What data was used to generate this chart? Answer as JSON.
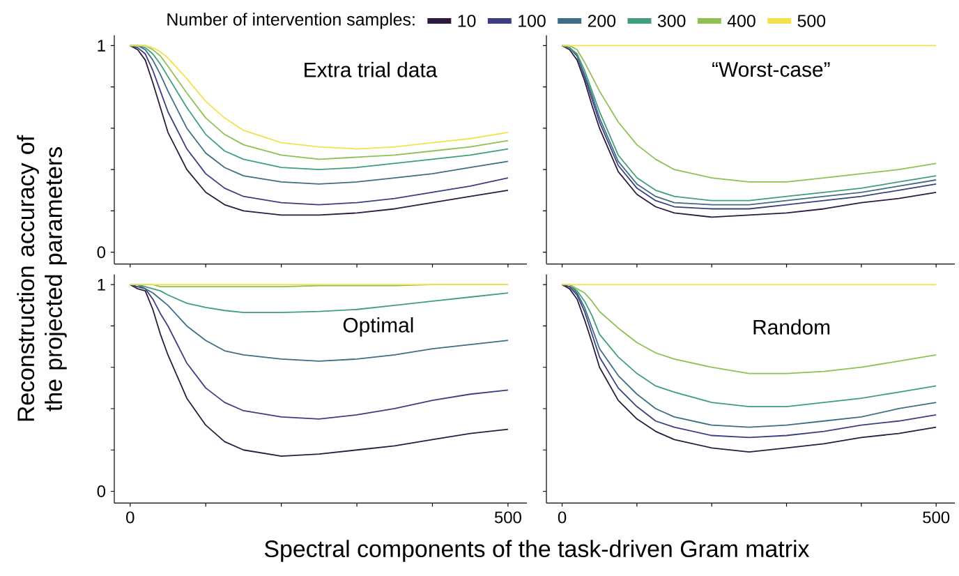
{
  "chart_data": [
    {
      "type": "line",
      "title": "Extra trial data",
      "legend": "top",
      "legend_title": "Number of intervention samples:",
      "ylabel": "Reconstruction accuracy of the projected parameters",
      "tick_labels": "y",
      "xlim": [
        -21,
        525
      ],
      "ylim": [
        -0.057,
        1.05
      ],
      "xticks": [
        0,
        {
          "value": 100,
          "label": null
        },
        {
          "value": 200,
          "label": null
        },
        {
          "value": 300,
          "label": null
        },
        {
          "value": 400,
          "label": null
        },
        500
      ],
      "yticks": [
        0,
        {
          "value": 0.2,
          "label": null
        },
        {
          "value": 0.4,
          "label": null
        },
        {
          "value": 0.6,
          "label": null
        },
        {
          "value": 0.8,
          "label": null
        },
        1
      ],
      "x": [
        0,
        10,
        20,
        30,
        40,
        50,
        75,
        100,
        125,
        150,
        200,
        250,
        300,
        350,
        400,
        450,
        500
      ],
      "series": [
        {
          "name": "10",
          "color": "#2d1a3d",
          "values": [
            1,
            0.98,
            0.93,
            0.82,
            0.7,
            0.58,
            0.4,
            0.29,
            0.23,
            0.2,
            0.18,
            0.18,
            0.19,
            0.21,
            0.24,
            0.27,
            0.3
          ]
        },
        {
          "name": "100",
          "color": "#3b3f80",
          "values": [
            1,
            0.99,
            0.96,
            0.88,
            0.78,
            0.68,
            0.5,
            0.38,
            0.31,
            0.27,
            0.24,
            0.23,
            0.24,
            0.26,
            0.29,
            0.32,
            0.36
          ]
        },
        {
          "name": "200",
          "color": "#3e6d84",
          "values": [
            1,
            1,
            0.98,
            0.93,
            0.86,
            0.78,
            0.6,
            0.48,
            0.41,
            0.37,
            0.34,
            0.33,
            0.34,
            0.36,
            0.38,
            0.41,
            0.44
          ]
        },
        {
          "name": "300",
          "color": "#3f9f7a",
          "values": [
            1,
            1,
            0.99,
            0.96,
            0.91,
            0.85,
            0.7,
            0.57,
            0.49,
            0.45,
            0.41,
            0.4,
            0.41,
            0.43,
            0.45,
            0.47,
            0.5
          ]
        },
        {
          "name": "400",
          "color": "#8dc153",
          "values": [
            1,
            1,
            1,
            0.98,
            0.95,
            0.9,
            0.77,
            0.65,
            0.57,
            0.52,
            0.47,
            0.45,
            0.46,
            0.47,
            0.49,
            0.51,
            0.54
          ]
        },
        {
          "name": "500",
          "color": "#f2e24c",
          "values": [
            1,
            1,
            1,
            0.99,
            0.97,
            0.94,
            0.84,
            0.73,
            0.65,
            0.59,
            0.53,
            0.51,
            0.5,
            0.51,
            0.53,
            0.55,
            0.58
          ]
        }
      ]
    },
    {
      "type": "line",
      "title": "“Worst-case”",
      "tick_labels": false,
      "xlim": [
        -21,
        525
      ],
      "ylim": [
        -0.057,
        1.05
      ],
      "xticks": [
        0,
        {
          "value": 100,
          "label": null
        },
        {
          "value": 200,
          "label": null
        },
        {
          "value": 300,
          "label": null
        },
        {
          "value": 400,
          "label": null
        },
        500
      ],
      "yticks": [
        0,
        {
          "value": 0.2,
          "label": null
        },
        {
          "value": 0.4,
          "label": null
        },
        {
          "value": 0.6,
          "label": null
        },
        {
          "value": 0.8,
          "label": null
        },
        1
      ],
      "x": [
        0,
        10,
        20,
        30,
        40,
        50,
        75,
        100,
        125,
        150,
        200,
        250,
        300,
        350,
        400,
        450,
        500
      ],
      "series": [
        {
          "color": "#2d1a3d",
          "values": [
            1,
            0.98,
            0.93,
            0.83,
            0.71,
            0.6,
            0.39,
            0.28,
            0.22,
            0.19,
            0.17,
            0.18,
            0.19,
            0.21,
            0.24,
            0.26,
            0.29
          ]
        },
        {
          "color": "#3b3f80",
          "values": [
            1,
            0.99,
            0.95,
            0.85,
            0.74,
            0.63,
            0.42,
            0.31,
            0.25,
            0.22,
            0.21,
            0.21,
            0.23,
            0.25,
            0.27,
            0.3,
            0.33
          ]
        },
        {
          "color": "#3e6d84",
          "values": [
            1,
            0.99,
            0.95,
            0.86,
            0.76,
            0.65,
            0.44,
            0.33,
            0.27,
            0.24,
            0.23,
            0.23,
            0.25,
            0.27,
            0.29,
            0.32,
            0.35
          ]
        },
        {
          "color": "#3f9f7a",
          "values": [
            1,
            0.99,
            0.96,
            0.88,
            0.78,
            0.68,
            0.47,
            0.36,
            0.3,
            0.27,
            0.25,
            0.25,
            0.27,
            0.29,
            0.31,
            0.34,
            0.37
          ]
        },
        {
          "color": "#8dc153",
          "values": [
            1,
            1,
            0.98,
            0.92,
            0.85,
            0.78,
            0.63,
            0.52,
            0.45,
            0.4,
            0.36,
            0.34,
            0.34,
            0.36,
            0.38,
            0.4,
            0.43
          ]
        },
        {
          "color": "#f2e24c",
          "values": [
            1,
            1,
            1,
            1,
            1,
            1,
            1,
            1,
            1,
            1,
            1,
            1,
            1,
            1,
            1,
            1,
            1
          ]
        }
      ]
    },
    {
      "type": "line",
      "title": "Optimal",
      "xlabel": "Spectral components of the task-driven Gram matrix",
      "xlim": [
        -21,
        525
      ],
      "ylim": [
        -0.057,
        1.05
      ],
      "xticks": [
        0,
        {
          "value": 100,
          "label": null
        },
        {
          "value": 200,
          "label": null
        },
        {
          "value": 300,
          "label": null
        },
        {
          "value": 400,
          "label": null
        },
        500
      ],
      "yticks": [
        0,
        {
          "value": 0.2,
          "label": null
        },
        {
          "value": 0.4,
          "label": null
        },
        {
          "value": 0.6,
          "label": null
        },
        {
          "value": 0.8,
          "label": null
        },
        1
      ],
      "x": [
        0,
        10,
        20,
        30,
        40,
        50,
        75,
        100,
        125,
        150,
        200,
        250,
        300,
        350,
        400,
        450,
        500
      ],
      "series": [
        {
          "color": "#2d1a3d",
          "values": [
            1,
            0.98,
            0.97,
            0.88,
            0.76,
            0.66,
            0.45,
            0.32,
            0.24,
            0.2,
            0.17,
            0.18,
            0.2,
            0.22,
            0.25,
            0.28,
            0.3
          ]
        },
        {
          "color": "#3b3f80",
          "values": [
            1,
            0.99,
            0.98,
            0.93,
            0.86,
            0.8,
            0.62,
            0.5,
            0.43,
            0.39,
            0.36,
            0.35,
            0.37,
            0.4,
            0.44,
            0.47,
            0.49
          ]
        },
        {
          "color": "#3e6d84",
          "values": [
            1,
            1,
            0.98,
            0.96,
            0.93,
            0.9,
            0.8,
            0.73,
            0.68,
            0.66,
            0.64,
            0.63,
            0.64,
            0.66,
            0.69,
            0.71,
            0.73
          ]
        },
        {
          "color": "#3f9f7a",
          "values": [
            1,
            1,
            0.99,
            0.98,
            0.97,
            0.95,
            0.91,
            0.89,
            0.875,
            0.865,
            0.865,
            0.87,
            0.88,
            0.9,
            0.92,
            0.94,
            0.96
          ]
        },
        {
          "color": "#8dc153",
          "values": [
            1,
            1,
            1,
            1,
            0.99,
            0.99,
            0.99,
            0.99,
            0.99,
            0.99,
            0.99,
            0.995,
            0.995,
            0.995,
            1,
            1,
            1
          ]
        },
        {
          "color": "#f2e24c",
          "values": [
            1,
            1,
            1,
            1,
            1,
            1,
            1,
            1,
            1,
            1,
            1,
            1,
            1,
            1,
            1,
            1,
            1
          ]
        }
      ]
    },
    {
      "type": "line",
      "title": "Random",
      "tick_labels": "x",
      "xlim": [
        -21,
        525
      ],
      "ylim": [
        -0.057,
        1.05
      ],
      "xticks": [
        0,
        {
          "value": 100,
          "label": null
        },
        {
          "value": 200,
          "label": null
        },
        {
          "value": 300,
          "label": null
        },
        {
          "value": 400,
          "label": null
        },
        500
      ],
      "yticks": [
        0,
        {
          "value": 0.2,
          "label": null
        },
        {
          "value": 0.4,
          "label": null
        },
        {
          "value": 0.6,
          "label": null
        },
        {
          "value": 0.8,
          "label": null
        },
        1
      ],
      "x": [
        0,
        10,
        20,
        30,
        40,
        50,
        75,
        100,
        125,
        150,
        200,
        250,
        300,
        350,
        400,
        450,
        500
      ],
      "series": [
        {
          "color": "#2d1a3d",
          "values": [
            1,
            0.98,
            0.93,
            0.83,
            0.72,
            0.6,
            0.44,
            0.35,
            0.29,
            0.25,
            0.21,
            0.19,
            0.21,
            0.23,
            0.26,
            0.28,
            0.31
          ]
        },
        {
          "color": "#3b3f80",
          "values": [
            1,
            0.99,
            0.95,
            0.87,
            0.76,
            0.65,
            0.5,
            0.41,
            0.34,
            0.31,
            0.27,
            0.26,
            0.27,
            0.29,
            0.32,
            0.34,
            0.37
          ]
        },
        {
          "color": "#3e6d84",
          "values": [
            1,
            1,
            0.96,
            0.89,
            0.79,
            0.69,
            0.56,
            0.47,
            0.4,
            0.36,
            0.32,
            0.31,
            0.32,
            0.34,
            0.36,
            0.4,
            0.43
          ]
        },
        {
          "color": "#3f9f7a",
          "values": [
            1,
            1,
            0.97,
            0.92,
            0.85,
            0.76,
            0.65,
            0.57,
            0.51,
            0.48,
            0.43,
            0.41,
            0.41,
            0.43,
            0.45,
            0.48,
            0.51
          ]
        },
        {
          "color": "#8dc153",
          "values": [
            1,
            1,
            0.98,
            0.96,
            0.92,
            0.87,
            0.79,
            0.72,
            0.67,
            0.64,
            0.6,
            0.57,
            0.57,
            0.58,
            0.6,
            0.63,
            0.66
          ]
        },
        {
          "color": "#f2e24c",
          "values": [
            1,
            1,
            1,
            1,
            1,
            1,
            1,
            1,
            1,
            1,
            1,
            1,
            1,
            1,
            1,
            1,
            1
          ]
        }
      ]
    }
  ]
}
